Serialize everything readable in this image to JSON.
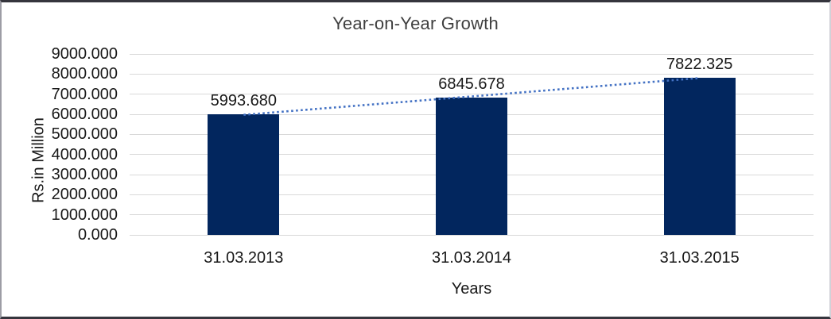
{
  "chart_data": {
    "type": "bar",
    "title": "Year-on-Year Growth",
    "categories": [
      "31.03.2013",
      "31.03.2014",
      "31.03.2015"
    ],
    "values": [
      5993.68,
      6845.678,
      7822.325
    ],
    "data_labels": [
      "5993.680",
      "6845.678",
      "7822.325"
    ],
    "xlabel": "Years",
    "ylabel": "Rs.in Million",
    "ylim": [
      0,
      9000
    ],
    "ytick_step": 1000,
    "ytick_decimals": 3,
    "grid": true,
    "legend": "none",
    "bar_color": "#02265e",
    "gridline_color": "#d9d9d9",
    "text_color": "#181818",
    "title_color": "#3f3f3f",
    "trendline": {
      "type": "linear",
      "style": "dotted",
      "color": "#4472c4"
    }
  }
}
